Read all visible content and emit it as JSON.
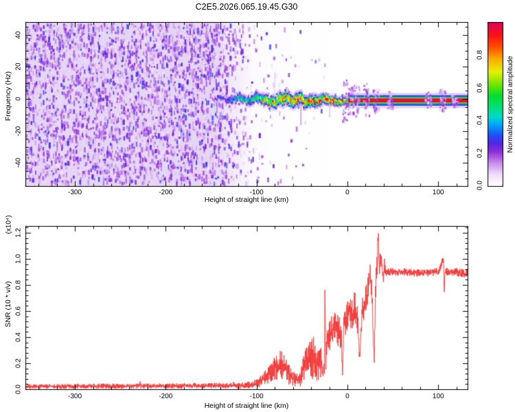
{
  "figure_title": "C2E5.2026.065.19.45.G30",
  "colors": {
    "background": "#ffffff",
    "axis": "#000000",
    "snr_curve": "#f23434",
    "noise_field_base": "#e3d2f4"
  },
  "colormap_stops": [
    [
      0.0,
      "#ffffff"
    ],
    [
      0.07,
      "#eeddf9"
    ],
    [
      0.14,
      "#c78ceb"
    ],
    [
      0.21,
      "#8d2cd9"
    ],
    [
      0.26,
      "#5128e2"
    ],
    [
      0.31,
      "#1f50f5"
    ],
    [
      0.37,
      "#00a0fa"
    ],
    [
      0.42,
      "#00d7d2"
    ],
    [
      0.48,
      "#00e178"
    ],
    [
      0.55,
      "#00dc32"
    ],
    [
      0.62,
      "#6ee600"
    ],
    [
      0.7,
      "#e6f000"
    ],
    [
      0.78,
      "#ffaa00"
    ],
    [
      0.85,
      "#ff5000"
    ],
    [
      0.92,
      "#fa1414"
    ],
    [
      1.0,
      "#e1005a"
    ]
  ],
  "chart_data": [
    {
      "type": "heatmap",
      "title": "C2E5.2026.065.19.45.G30",
      "xlabel": "Height of straight line (km)",
      "ylabel": "Frequency (Hz)",
      "x_range": [
        -353.7,
        132.3
      ],
      "y_range": [
        -54.6,
        47.7
      ],
      "x_ticks": {
        "values": [
          -300,
          -200,
          -100,
          0,
          100
        ],
        "labels": [
          "-300",
          "-200",
          "-100",
          "0",
          "100"
        ]
      },
      "x_minor_step": 20,
      "y_ticks": {
        "values": [
          -40,
          -20,
          0,
          20,
          40
        ],
        "labels": [
          "-40",
          "-20",
          "0",
          "20",
          "40"
        ]
      },
      "y_minor_step": 5,
      "grid": false,
      "noise_field": {
        "description": "dense purple speckle noise filling plot at low heights, fading out before -100 km",
        "density_profile": [
          [
            -353.7,
            1.0
          ],
          [
            -148,
            1.0
          ],
          [
            -124,
            0.45
          ],
          [
            -104,
            0.12
          ],
          [
            -88,
            0.08
          ],
          [
            -60,
            0.045
          ],
          [
            -25,
            0.015
          ],
          [
            -20,
            0.0
          ],
          [
            132.3,
            0.0
          ]
        ],
        "value_range": [
          0.05,
          0.3
        ]
      },
      "signal_track": {
        "description": "anchors [height_km, center_freq_hz, halfwidth_hz, normalized_amplitude]",
        "anchors": [
          [
            -148,
            -0.5,
            1.4,
            0.2
          ],
          [
            -140,
            0.8,
            1.6,
            0.28
          ],
          [
            -132,
            -1.2,
            1.9,
            0.34
          ],
          [
            -124,
            0.3,
            2.1,
            0.4
          ],
          [
            -116,
            1.2,
            2.3,
            0.46
          ],
          [
            -108,
            -1.8,
            2.5,
            0.5
          ],
          [
            -100,
            1.6,
            2.7,
            0.55
          ],
          [
            -92,
            -0.6,
            2.9,
            0.6
          ],
          [
            -84,
            -2.8,
            3.1,
            0.66
          ],
          [
            -76,
            -1.2,
            3.3,
            0.7
          ],
          [
            -68,
            1.2,
            3.4,
            0.74
          ],
          [
            -60,
            -2.4,
            3.4,
            0.78
          ],
          [
            -52,
            -0.2,
            3.2,
            0.8
          ],
          [
            -44,
            -2.2,
            3.0,
            0.83
          ],
          [
            -36,
            -1.0,
            2.8,
            0.85
          ],
          [
            -28,
            -0.4,
            2.6,
            0.86
          ],
          [
            -20,
            -1.6,
            2.3,
            0.88
          ],
          [
            -12,
            -1.2,
            2.1,
            0.9
          ],
          [
            -4,
            -1.0,
            1.9,
            0.93
          ],
          [
            2,
            -1.0,
            1.8,
            0.96
          ],
          [
            132.3,
            -1.0,
            1.8,
            0.97
          ]
        ],
        "wiggle_hz": 1.2
      },
      "stripe_layers": {
        "description": "layered horizontal line at high heights [halfwidth_hz, colormap_value], outer to inner",
        "layers": [
          [
            4.8,
            0.08
          ],
          [
            3.3,
            0.3
          ],
          [
            2.2,
            0.5
          ],
          [
            1.65,
            0.63
          ],
          [
            1.25,
            0.97
          ]
        ],
        "center_freq_hz": -1.0,
        "starts_at_km": 1
      },
      "fuzz_bursts": [
        [
          -3,
          13
        ],
        [
          3,
          8
        ],
        [
          9,
          10
        ],
        [
          20,
          11
        ],
        [
          31,
          8
        ],
        [
          46,
          6
        ],
        [
          88,
          5
        ],
        [
          104,
          7
        ],
        [
          117,
          4
        ]
      ],
      "colorbar": {
        "label": "Normalized spectral amplitude",
        "range": [
          0,
          1
        ],
        "ticks": {
          "values": [
            0.0,
            0.2,
            0.4,
            0.6,
            0.8
          ],
          "labels": [
            "0.0",
            "0.2",
            "0.4",
            "0.6",
            "0.8"
          ]
        }
      }
    },
    {
      "type": "line",
      "xlabel": "Height of straight line (km)",
      "ylabel": "SNR (10 * v/v)",
      "scale_label": "(x10⁴)",
      "x_range": [
        -353.7,
        132.3
      ],
      "y_range": [
        0,
        1.247
      ],
      "x_ticks": {
        "values": [
          -300,
          -200,
          -100,
          0,
          100
        ],
        "labels": [
          "-300",
          "-200",
          "-100",
          "0",
          "100"
        ]
      },
      "x_minor_step": 20,
      "y_ticks": {
        "values": [
          0.0,
          0.2,
          0.4,
          0.6,
          0.8,
          1.0,
          1.2
        ],
        "labels": [
          "0.0",
          "0.2",
          "0.4",
          "0.6",
          "0.8",
          "1.0",
          "1.2"
        ]
      },
      "y_minor_step": 0.04,
      "grid": false,
      "series": [
        {
          "name": "SNR",
          "color": "#f23434",
          "anchors_format": "[height_km, snr_x1e4, local_noise_halfamp]",
          "anchors": [
            [
              -353.7,
              0.022,
              0.018
            ],
            [
              -320,
              0.022,
              0.018
            ],
            [
              -290,
              0.024,
              0.02
            ],
            [
              -260,
              0.024,
              0.02
            ],
            [
              -230,
              0.026,
              0.02
            ],
            [
              -200,
              0.026,
              0.02
            ],
            [
              -170,
              0.028,
              0.022
            ],
            [
              -140,
              0.028,
              0.022
            ],
            [
              -115,
              0.03,
              0.025
            ],
            [
              -104,
              0.035,
              0.03
            ],
            [
              -97,
              0.05,
              0.04
            ],
            [
              -91,
              0.09,
              0.06
            ],
            [
              -85,
              0.13,
              0.08
            ],
            [
              -79,
              0.17,
              0.1
            ],
            [
              -73,
              0.18,
              0.12
            ],
            [
              -68,
              0.16,
              0.11
            ],
            [
              -63,
              0.1,
              0.07
            ],
            [
              -57,
              0.07,
              0.05
            ],
            [
              -52,
              0.09,
              0.07
            ],
            [
              -48,
              0.16,
              0.12
            ],
            [
              -44,
              0.24,
              0.16
            ],
            [
              -40,
              0.22,
              0.16
            ],
            [
              -37,
              0.26,
              0.17
            ],
            [
              -33,
              0.18,
              0.13
            ],
            [
              -30,
              0.24,
              0.16
            ],
            [
              -27,
              0.1,
              0.07
            ],
            [
              -25.3,
              0.18,
              0.08
            ],
            [
              -24.7,
              0.93,
              0.04
            ],
            [
              -24.1,
              0.2,
              0.08
            ],
            [
              -22,
              0.38,
              0.12
            ],
            [
              -19,
              0.42,
              0.13
            ],
            [
              -16,
              0.45,
              0.13
            ],
            [
              -13,
              0.5,
              0.14
            ],
            [
              -10,
              0.44,
              0.14
            ],
            [
              -7,
              0.42,
              0.12
            ],
            [
              -5.3,
              0.14,
              0.04
            ],
            [
              -4,
              0.5,
              0.12
            ],
            [
              -1,
              0.55,
              0.13
            ],
            [
              2,
              0.6,
              0.13
            ],
            [
              5,
              0.55,
              0.14
            ],
            [
              8,
              0.64,
              0.15
            ],
            [
              11,
              0.55,
              0.13
            ],
            [
              13.5,
              0.22,
              0.06
            ],
            [
              16,
              0.6,
              0.12
            ],
            [
              19,
              0.66,
              0.12
            ],
            [
              22,
              0.72,
              0.12
            ],
            [
              25,
              0.88,
              0.08
            ],
            [
              27,
              0.72,
              0.12
            ],
            [
              29.5,
              0.2,
              0.05
            ],
            [
              31,
              0.75,
              0.15
            ],
            [
              33,
              1.0,
              0.12
            ],
            [
              34,
              1.22,
              0.04
            ],
            [
              35,
              0.95,
              0.12
            ],
            [
              37,
              1.02,
              0.08
            ],
            [
              39,
              0.85,
              0.08
            ],
            [
              41,
              0.95,
              0.06
            ],
            [
              43,
              0.9,
              0.04
            ],
            [
              47,
              0.9,
              0.03
            ],
            [
              60,
              0.9,
              0.03
            ],
            [
              80,
              0.89,
              0.03
            ],
            [
              100,
              0.9,
              0.03
            ],
            [
              104,
              0.97,
              0.03
            ],
            [
              105.8,
              1.0,
              0.02
            ],
            [
              106.5,
              0.72,
              0.03
            ],
            [
              107.5,
              0.9,
              0.03
            ],
            [
              120,
              0.9,
              0.03
            ],
            [
              129,
              0.88,
              0.04
            ],
            [
              132.3,
              0.9,
              0.03
            ]
          ]
        }
      ]
    }
  ]
}
